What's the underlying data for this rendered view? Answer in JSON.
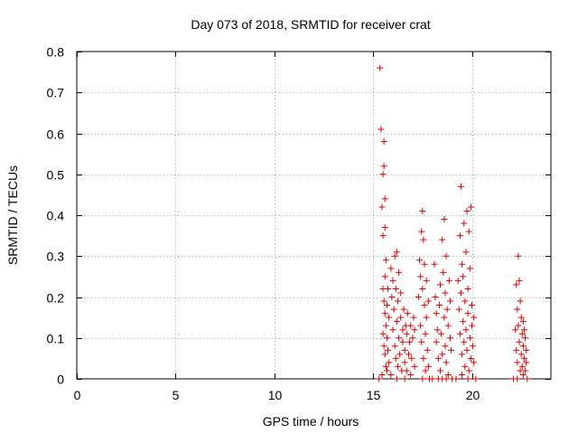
{
  "chart_data": {
    "type": "scatter",
    "title": "Day 073 of 2018, SRMTID for receiver crat",
    "xlabel": "GPS time / hours",
    "ylabel": "SRMTID / TECUs",
    "xlim": [
      0,
      24
    ],
    "ylim": [
      0,
      0.8
    ],
    "xticks": [
      0,
      5,
      10,
      15,
      20
    ],
    "yticks": [
      0,
      0.1,
      0.2,
      0.3,
      0.4,
      0.5,
      0.6,
      0.7,
      0.8
    ],
    "xtick_labels": [
      "0",
      "5",
      "10",
      "15",
      "20"
    ],
    "ytick_labels": [
      "0",
      "0.1",
      "0.2",
      "0.3",
      "0.4",
      "0.5",
      "0.6",
      "0.7",
      "0.8"
    ],
    "grid": true,
    "marker": "plus",
    "color": "#e00000",
    "series": [
      {
        "name": "SRMTID",
        "points": [
          [
            15.3,
            0.0
          ],
          [
            15.35,
            0.76
          ],
          [
            15.4,
            0.61
          ],
          [
            15.45,
            0.42
          ],
          [
            15.5,
            0.5
          ],
          [
            15.5,
            0.35
          ],
          [
            15.55,
            0.58
          ],
          [
            15.55,
            0.52
          ],
          [
            15.6,
            0.44
          ],
          [
            15.6,
            0.37
          ],
          [
            15.5,
            0.22
          ],
          [
            15.55,
            0.19
          ],
          [
            15.6,
            0.25
          ],
          [
            15.6,
            0.16
          ],
          [
            15.65,
            0.29
          ],
          [
            15.65,
            0.13
          ],
          [
            15.7,
            0.18
          ],
          [
            15.7,
            0.1
          ],
          [
            15.75,
            0.22
          ],
          [
            15.75,
            0.07
          ],
          [
            15.8,
            0.15
          ],
          [
            15.8,
            0.04
          ],
          [
            15.5,
            0.11
          ],
          [
            15.55,
            0.08
          ],
          [
            15.6,
            0.06
          ],
          [
            15.65,
            0.03
          ],
          [
            15.7,
            0.02
          ],
          [
            15.45,
            0.01
          ],
          [
            15.9,
            0.27
          ],
          [
            15.95,
            0.2
          ],
          [
            16.0,
            0.24
          ],
          [
            16.0,
            0.12
          ],
          [
            16.05,
            0.17
          ],
          [
            16.1,
            0.3
          ],
          [
            16.1,
            0.08
          ],
          [
            16.15,
            0.22
          ],
          [
            16.15,
            0.05
          ],
          [
            16.2,
            0.31
          ],
          [
            16.2,
            0.14
          ],
          [
            16.25,
            0.19
          ],
          [
            16.25,
            0.03
          ],
          [
            16.3,
            0.26
          ],
          [
            16.3,
            0.1
          ],
          [
            16.35,
            0.06
          ],
          [
            16.4,
            0.21
          ],
          [
            16.4,
            0.15
          ],
          [
            16.45,
            0.02
          ],
          [
            16.5,
            0.12
          ],
          [
            16.5,
            0.09
          ],
          [
            16.55,
            0.17
          ],
          [
            16.6,
            0.07
          ],
          [
            16.6,
            0.04
          ],
          [
            16.65,
            0.13
          ],
          [
            16.7,
            0.11
          ],
          [
            16.7,
            0.02
          ],
          [
            16.75,
            0.16
          ],
          [
            16.8,
            0.06
          ],
          [
            16.85,
            0.09
          ],
          [
            16.9,
            0.13
          ],
          [
            16.9,
            0.01
          ],
          [
            16.95,
            0.05
          ],
          [
            17.0,
            0.1
          ],
          [
            17.05,
            0.15
          ],
          [
            17.1,
            0.03
          ],
          [
            17.1,
            0.12
          ],
          [
            15.9,
            0.01
          ],
          [
            16.2,
            0.0
          ],
          [
            16.6,
            0.0
          ],
          [
            17.3,
            0.2
          ],
          [
            17.35,
            0.29
          ],
          [
            17.4,
            0.25
          ],
          [
            17.4,
            0.13
          ],
          [
            17.45,
            0.36
          ],
          [
            17.45,
            0.09
          ],
          [
            17.5,
            0.41
          ],
          [
            17.5,
            0.22
          ],
          [
            17.55,
            0.34
          ],
          [
            17.55,
            0.05
          ],
          [
            17.6,
            0.28
          ],
          [
            17.6,
            0.18
          ],
          [
            17.65,
            0.11
          ],
          [
            17.65,
            0.02
          ],
          [
            17.7,
            0.24
          ],
          [
            17.7,
            0.15
          ],
          [
            17.75,
            0.07
          ],
          [
            17.8,
            0.19
          ],
          [
            17.8,
            0.03
          ],
          [
            17.5,
            0.0
          ],
          [
            17.85,
            0.0
          ],
          [
            18.0,
            0.0
          ],
          [
            18.1,
            0.28
          ],
          [
            18.15,
            0.2
          ],
          [
            18.2,
            0.16
          ],
          [
            18.2,
            0.09
          ],
          [
            18.25,
            0.12
          ],
          [
            18.3,
            0.05
          ],
          [
            18.35,
            0.18
          ],
          [
            18.4,
            0.23
          ],
          [
            18.4,
            0.02
          ],
          [
            18.45,
            0.11
          ],
          [
            18.5,
            0.34
          ],
          [
            18.5,
            0.06
          ],
          [
            18.55,
            0.26
          ],
          [
            18.6,
            0.39
          ],
          [
            18.6,
            0.15
          ],
          [
            18.65,
            0.21
          ],
          [
            18.65,
            0.08
          ],
          [
            18.7,
            0.3
          ],
          [
            18.7,
            0.04
          ],
          [
            18.75,
            0.17
          ],
          [
            18.8,
            0.13
          ],
          [
            18.8,
            0.01
          ],
          [
            18.85,
            0.24
          ],
          [
            18.9,
            0.1
          ],
          [
            18.9,
            0.19
          ],
          [
            18.95,
            0.07
          ],
          [
            18.3,
            0.0
          ],
          [
            18.5,
            0.0
          ],
          [
            18.7,
            0.0
          ],
          [
            19.0,
            0.0
          ],
          [
            19.2,
            0.0
          ],
          [
            19.3,
            0.24
          ],
          [
            19.35,
            0.17
          ],
          [
            19.4,
            0.35
          ],
          [
            19.4,
            0.11
          ],
          [
            19.45,
            0.47
          ],
          [
            19.45,
            0.21
          ],
          [
            19.5,
            0.28
          ],
          [
            19.5,
            0.06
          ],
          [
            19.55,
            0.14
          ],
          [
            19.55,
            0.25
          ],
          [
            19.6,
            0.38
          ],
          [
            19.6,
            0.09
          ],
          [
            19.65,
            0.19
          ],
          [
            19.65,
            0.03
          ],
          [
            19.7,
            0.31
          ],
          [
            19.7,
            0.12
          ],
          [
            19.75,
            0.41
          ],
          [
            19.75,
            0.07
          ],
          [
            19.8,
            0.22
          ],
          [
            19.8,
            0.16
          ],
          [
            19.85,
            0.36
          ],
          [
            19.85,
            0.02
          ],
          [
            19.9,
            0.27
          ],
          [
            19.9,
            0.1
          ],
          [
            19.95,
            0.42
          ],
          [
            19.95,
            0.05
          ],
          [
            20.0,
            0.18
          ],
          [
            20.0,
            0.13
          ],
          [
            20.05,
            0.08
          ],
          [
            20.1,
            0.04
          ],
          [
            20.1,
            0.15
          ],
          [
            19.5,
            0.01
          ],
          [
            19.8,
            0.0
          ],
          [
            20.2,
            0.0
          ],
          [
            22.1,
            0.0
          ],
          [
            22.2,
            0.12
          ],
          [
            22.25,
            0.23
          ],
          [
            22.25,
            0.07
          ],
          [
            22.3,
            0.17
          ],
          [
            22.3,
            0.04
          ],
          [
            22.35,
            0.3
          ],
          [
            22.35,
            0.13
          ],
          [
            22.4,
            0.24
          ],
          [
            22.4,
            0.09
          ],
          [
            22.45,
            0.19
          ],
          [
            22.45,
            0.02
          ],
          [
            22.5,
            0.15
          ],
          [
            22.5,
            0.06
          ],
          [
            22.55,
            0.11
          ],
          [
            22.55,
            0.03
          ],
          [
            22.6,
            0.14
          ],
          [
            22.6,
            0.08
          ],
          [
            22.65,
            0.05
          ],
          [
            22.65,
            0.12
          ],
          [
            22.7,
            0.1
          ],
          [
            22.7,
            0.02
          ],
          [
            22.75,
            0.04
          ],
          [
            22.75,
            0.07
          ],
          [
            22.3,
            0.0
          ],
          [
            22.6,
            0.01
          ],
          [
            22.8,
            0.0
          ]
        ]
      }
    ]
  }
}
